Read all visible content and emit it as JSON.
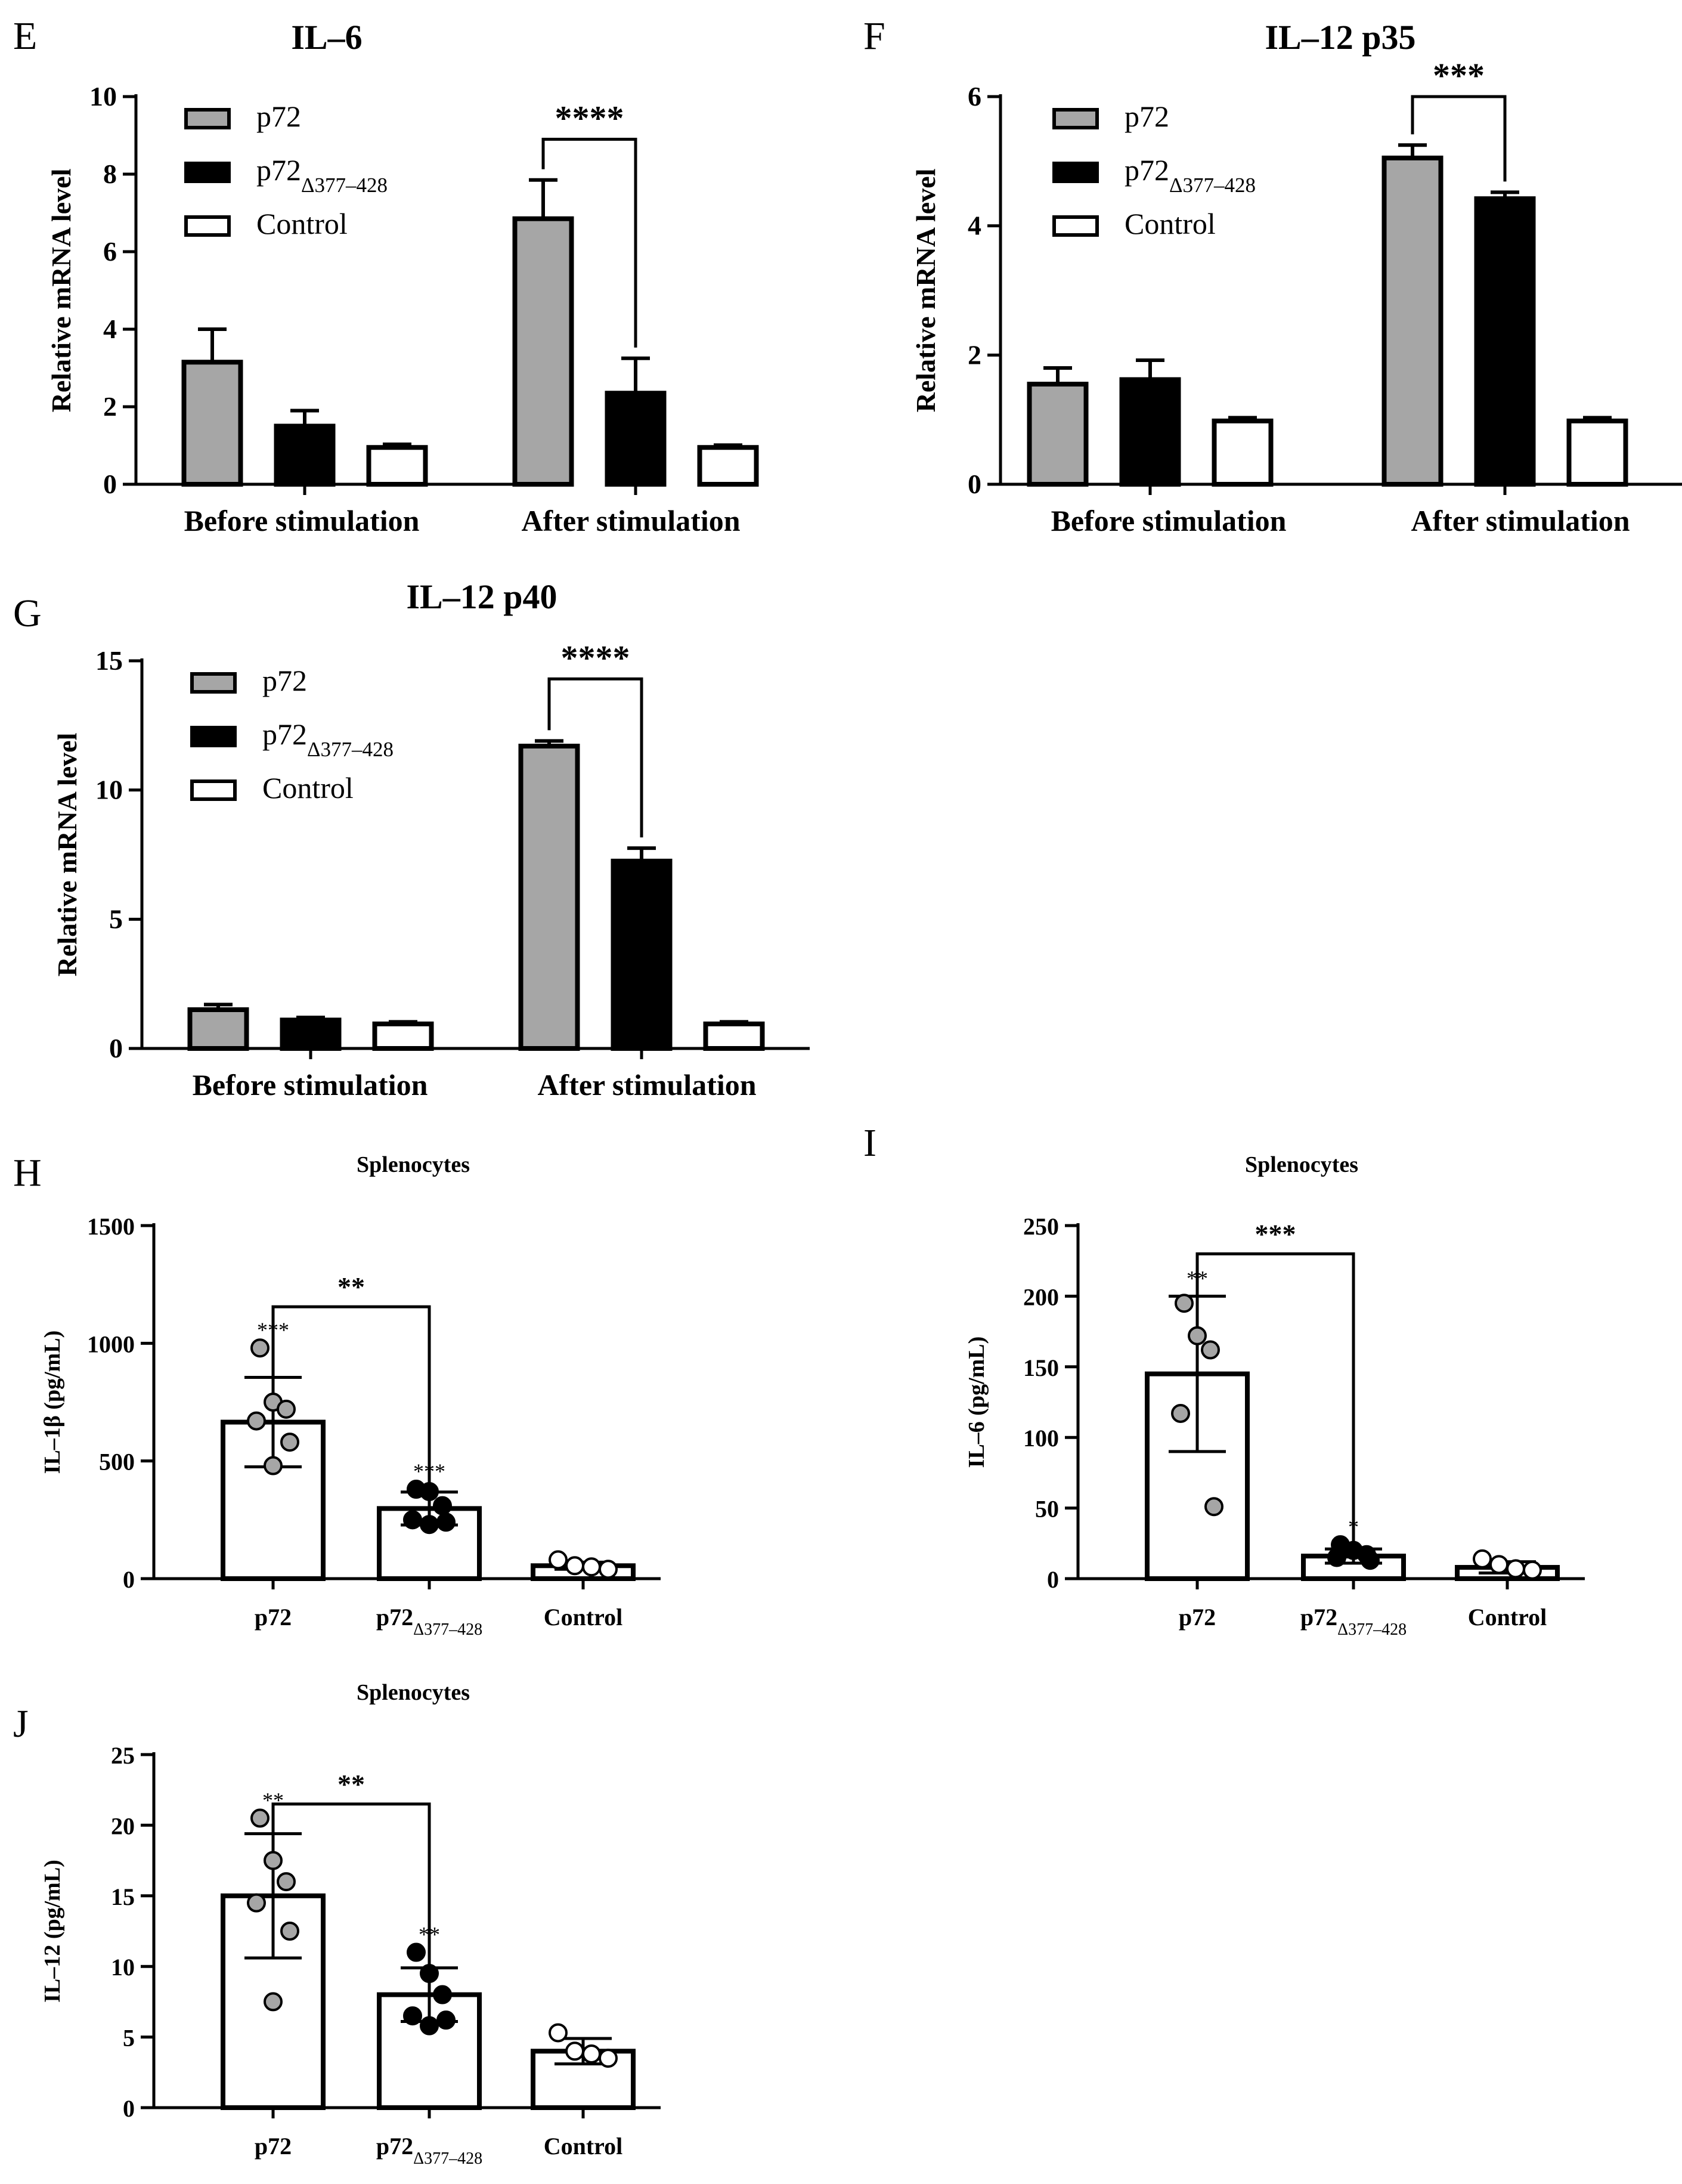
{
  "colors": {
    "p72": "#a6a6a6",
    "p72_delta": "#000000",
    "control": "#ffffff",
    "axis": "#000000"
  },
  "legend": {
    "p72": "p72",
    "delta_base": "p72",
    "delta_sub": "Δ377–428",
    "control": "Control"
  },
  "chart_data": [
    {
      "id": "E",
      "panel_letter": "E",
      "type": "bar",
      "title": "IL–6",
      "ylabel": "Relative mRNA level",
      "ylim": [
        0,
        10
      ],
      "yticks": [
        0,
        2,
        4,
        6,
        8,
        10
      ],
      "ytick_labels": [
        "0",
        "2",
        "4",
        "6",
        "8",
        "10"
      ],
      "groups": [
        "Before stimulation",
        "After stimulation"
      ],
      "series": [
        {
          "name": "p72",
          "values": [
            3.15,
            6.85
          ],
          "errors": [
            0.85,
            1.0
          ]
        },
        {
          "name": "p72Δ377–428",
          "values": [
            1.5,
            2.35
          ],
          "errors": [
            0.4,
            0.9
          ]
        },
        {
          "name": "Control",
          "values": [
            0.95,
            0.95
          ],
          "errors": [
            0.08,
            0.06
          ]
        }
      ],
      "significance": [
        {
          "label": "****",
          "group": 1,
          "from": 0,
          "to": 1,
          "level": 8.9
        }
      ]
    },
    {
      "id": "F",
      "panel_letter": "F",
      "type": "bar",
      "title": "IL–12 p35",
      "ylabel": "Relative mRNA level",
      "ylim": [
        0,
        6
      ],
      "yticks": [
        0,
        2,
        4,
        6
      ],
      "ytick_labels": [
        "0",
        "2",
        "4",
        "6"
      ],
      "groups": [
        "Before stimulation",
        "After stimulation"
      ],
      "series": [
        {
          "name": "p72",
          "values": [
            1.55,
            5.05
          ],
          "errors": [
            0.25,
            0.2
          ]
        },
        {
          "name": "p72Δ377–428",
          "values": [
            1.62,
            4.42
          ],
          "errors": [
            0.3,
            0.1
          ]
        },
        {
          "name": "Control",
          "values": [
            0.98,
            0.98
          ],
          "errors": [
            0.05,
            0.05
          ]
        }
      ],
      "significance": [
        {
          "label": "***",
          "group": 1,
          "from": 0,
          "to": 1,
          "level": 6.0
        }
      ]
    },
    {
      "id": "G",
      "panel_letter": "G",
      "type": "bar",
      "title": "IL–12 p40",
      "ylabel": "Relative mRNA level",
      "ylim": [
        0,
        15
      ],
      "yticks": [
        0,
        5,
        10,
        15
      ],
      "ytick_labels": [
        "0",
        "5",
        "10",
        "15"
      ],
      "groups": [
        "Before stimulation",
        "After stimulation"
      ],
      "series": [
        {
          "name": "p72",
          "values": [
            1.5,
            11.7
          ],
          "errors": [
            0.2,
            0.2
          ]
        },
        {
          "name": "p72Δ377–428",
          "values": [
            1.1,
            7.25
          ],
          "errors": [
            0.1,
            0.5
          ]
        },
        {
          "name": "Control",
          "values": [
            0.95,
            0.95
          ],
          "errors": [
            0.08,
            0.08
          ]
        }
      ],
      "significance": [
        {
          "label": "****",
          "group": 1,
          "from": 0,
          "to": 1,
          "level": 14.3
        }
      ]
    },
    {
      "id": "H",
      "panel_letter": "H",
      "type": "bar",
      "title": "Splenocytes",
      "ylabel": "IL–1β (pg/mL)",
      "ylim": [
        0,
        1500
      ],
      "yticks": [
        0,
        500,
        1000,
        1500
      ],
      "ytick_labels": [
        "0",
        "500",
        "1000",
        "1500"
      ],
      "categories": [
        "p72",
        "p72Δ377–428",
        "Control"
      ],
      "values": [
        665,
        298,
        55
      ],
      "errors": [
        190,
        70,
        15
      ],
      "points": [
        [
          980,
          750,
          720,
          670,
          580,
          480
        ],
        [
          380,
          370,
          310,
          250,
          240,
          230
        ],
        [
          80,
          55,
          50,
          40
        ]
      ],
      "point_labels": [
        "***",
        "***",
        ""
      ],
      "significance": [
        {
          "label": "**",
          "from": 0,
          "to": 1,
          "level": 1155
        }
      ]
    },
    {
      "id": "I",
      "panel_letter": "I",
      "type": "bar",
      "title": "Splenocytes",
      "ylabel": "IL–6 (pg/mL)",
      "ylim": [
        0,
        250
      ],
      "yticks": [
        0,
        50,
        100,
        150,
        200,
        250
      ],
      "ytick_labels": [
        "0",
        "50",
        "100",
        "150",
        "200",
        "250"
      ],
      "categories": [
        "p72",
        "p72Δ377–428",
        "Control"
      ],
      "values": [
        145,
        16,
        8
      ],
      "errors": [
        55,
        5,
        4
      ],
      "points": [
        [
          195,
          172,
          162,
          117,
          51
        ],
        [
          24,
          20,
          17,
          15,
          13
        ],
        [
          14,
          10,
          7,
          6
        ]
      ],
      "point_labels": [
        "**",
        "*",
        ""
      ],
      "significance": [
        {
          "label": "***",
          "from": 0,
          "to": 1,
          "level": 230
        }
      ]
    },
    {
      "id": "J",
      "panel_letter": "J",
      "type": "bar",
      "title": "Splenocytes",
      "ylabel": "IL–12 (pg/mL)",
      "ylim": [
        0,
        25
      ],
      "yticks": [
        0,
        5,
        10,
        15,
        20,
        25
      ],
      "ytick_labels": [
        "0",
        "5",
        "10",
        "15",
        "20",
        "25"
      ],
      "categories": [
        "p72",
        "p72Δ377–428",
        "Control"
      ],
      "values": [
        15.0,
        8.0,
        4.0
      ],
      "errors": [
        4.4,
        1.9,
        0.9
      ],
      "points": [
        [
          20.5,
          17.5,
          16.0,
          14.5,
          12.5,
          7.5
        ],
        [
          11.0,
          9.5,
          8.0,
          6.5,
          6.2,
          5.8
        ],
        [
          5.3,
          4.0,
          3.8,
          3.5
        ]
      ],
      "point_labels": [
        "**",
        "**",
        ""
      ],
      "significance": [
        {
          "label": "**",
          "from": 0,
          "to": 1,
          "level": 21.5
        }
      ]
    }
  ]
}
